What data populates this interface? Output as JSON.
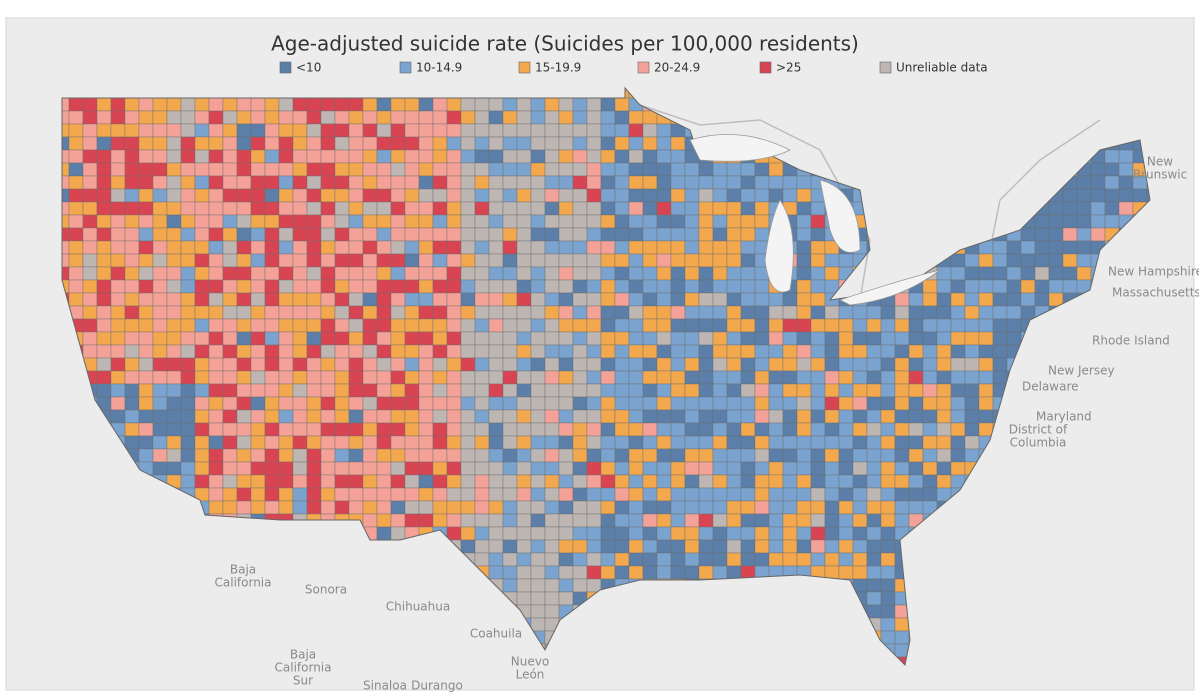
{
  "title": "Age-adjusted suicide rate (Suicides per 100,000 residents)",
  "legend": [
    {
      "label": "<10",
      "color": "#5b7fa8"
    },
    {
      "label": "10-14.9",
      "color": "#7aa3cf"
    },
    {
      "label": "15-19.9",
      "color": "#f3a84e"
    },
    {
      "label": "20-24.9",
      "color": "#f4a197"
    },
    {
      "label": ">25",
      "color": "#d94452"
    },
    {
      "label": "Unreliable data",
      "color": "#bdb6b2"
    }
  ],
  "places": [
    {
      "lines": [
        "New",
        "Brunswic"
      ]
    },
    {
      "lines": [
        "New Hampshire"
      ]
    },
    {
      "lines": [
        "Massachusetts"
      ]
    },
    {
      "lines": [
        "Rhode Island"
      ]
    },
    {
      "lines": [
        "New Jersey"
      ]
    },
    {
      "lines": [
        "Delaware"
      ]
    },
    {
      "lines": [
        "Maryland"
      ]
    },
    {
      "lines": [
        "District of",
        "Columbia"
      ]
    },
    {
      "lines": [
        "Baja",
        "California"
      ]
    },
    {
      "lines": [
        "Sonora"
      ]
    },
    {
      "lines": [
        "Chihuahua"
      ]
    },
    {
      "lines": [
        "Coahuila"
      ]
    },
    {
      "lines": [
        "Baja",
        "California",
        "Sur"
      ]
    },
    {
      "lines": [
        "Nuevo",
        "León"
      ]
    },
    {
      "lines": [
        "Sinaloa"
      ]
    },
    {
      "lines": [
        "Durango"
      ]
    }
  ]
}
